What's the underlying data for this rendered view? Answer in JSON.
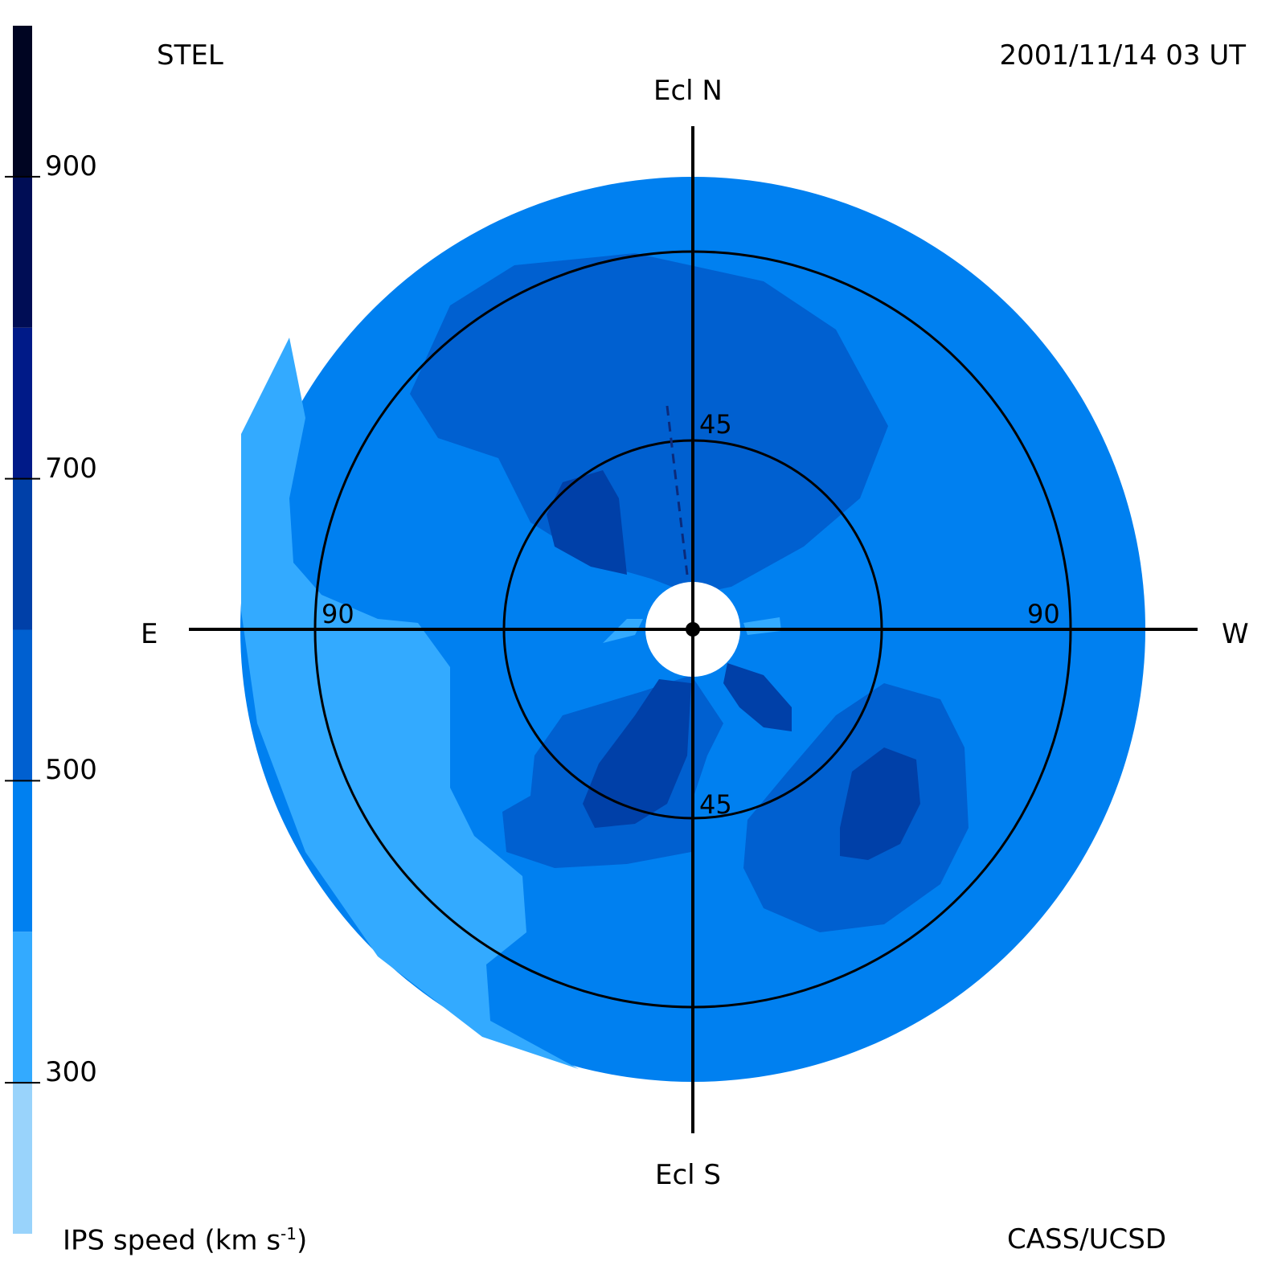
{
  "header": {
    "station": "STEL",
    "timestamp": "2001/11/14 03 UT"
  },
  "footer": {
    "colorbar_title": "IPS speed (km s",
    "colorbar_title_sup": "-1",
    "colorbar_title_end": ")",
    "credit": "CASS/UCSD"
  },
  "directions": {
    "north": "Ecl N",
    "south": "Ecl S",
    "east": "E",
    "west": "W"
  },
  "ring_labels": {
    "inner_top": "45",
    "inner_bottom": "45",
    "outer_left": "90",
    "outer_right": "90"
  },
  "colorbar": {
    "ticks": [
      "900",
      "700",
      "500",
      "300"
    ],
    "levels": [
      {
        "from": 200,
        "to": 300,
        "color": "#99d3fb"
      },
      {
        "from": 300,
        "to": 400,
        "color": "#33aaff"
      },
      {
        "from": 400,
        "to": 500,
        "color": "#0080f0"
      },
      {
        "from": 500,
        "to": 600,
        "color": "#0060d0"
      },
      {
        "from": 600,
        "to": 700,
        "color": "#0040a8"
      },
      {
        "from": 700,
        "to": 800,
        "color": "#001a88"
      },
      {
        "from": 800,
        "to": 900,
        "color": "#000d55"
      },
      {
        "from": 900,
        "to": 1000,
        "color": "#000522"
      }
    ]
  },
  "chart_data": {
    "type": "heatmap",
    "projection": "polar sky map (elongation rings)",
    "value_label": "IPS speed (km s-1)",
    "range": [
      200,
      1000
    ],
    "rings_deg": [
      45,
      90
    ],
    "regions": [
      {
        "name": "background",
        "speed": 450
      },
      {
        "name": "east edge band",
        "speed": 350
      },
      {
        "name": "north slow-fast lobe",
        "speed": 550
      },
      {
        "name": "north-east core",
        "speed": 650
      },
      {
        "name": "south-east lobe",
        "speed": 550
      },
      {
        "name": "south-east core",
        "speed": 650
      },
      {
        "name": "south-west lobe",
        "speed": 550
      },
      {
        "name": "south-west core",
        "speed": 650
      },
      {
        "name": "inner south-west core",
        "speed": 650
      }
    ]
  }
}
